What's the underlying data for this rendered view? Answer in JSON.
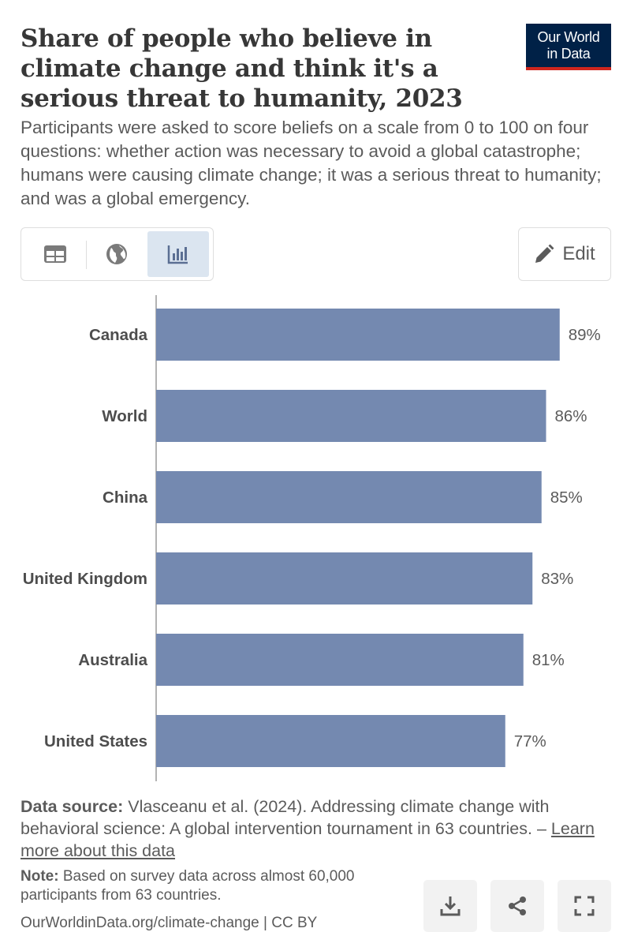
{
  "header": {
    "title": "Share of people who believe in climate change and think it's a serious threat to humanity, 2023",
    "logo_line1": "Our World",
    "logo_line2": "in Data",
    "subtitle": "Participants were asked to score beliefs on a scale from 0 to 100 on four questions: whether action was necessary to avoid a global catastrophe; humans were causing climate change; it was a serious threat to humanity; and was a global emergency."
  },
  "toolbar": {
    "tabs": [
      {
        "icon": "table-icon"
      },
      {
        "icon": "globe-icon"
      },
      {
        "icon": "bar-chart-icon",
        "active": true
      }
    ],
    "edit_label": "Edit",
    "edit_icon": "pencil-icon"
  },
  "chart_data": {
    "type": "bar",
    "orientation": "horizontal",
    "categories": [
      "Canada",
      "World",
      "China",
      "United Kingdom",
      "Australia",
      "United States"
    ],
    "values": [
      89,
      86,
      85,
      83,
      81,
      77
    ],
    "value_labels": [
      "89%",
      "86%",
      "85%",
      "83%",
      "81%",
      "77%"
    ],
    "unit": "%",
    "xlim": [
      0,
      100
    ],
    "bar_color": "#7489b0",
    "grid": false
  },
  "footer": {
    "source_label": "Data source:",
    "source_text": "Vlasceanu et al. (2024). Addressing climate change with behavioral science: A global intervention tournament in 63 countries. –",
    "source_link": "Learn more about this data",
    "note_label": "Note:",
    "note_text": "Based on survey data across almost 60,000 participants from 63 countries.",
    "url_text": "OurWorldinData.org/climate-change | CC BY",
    "actions": [
      {
        "icon": "download-icon"
      },
      {
        "icon": "share-icon"
      },
      {
        "icon": "fullscreen-icon"
      }
    ]
  },
  "colors": {
    "brand_navy": "#002147",
    "brand_red": "#ce261e",
    "bar": "#7489b0",
    "active_tab": "#dbe5f0"
  }
}
